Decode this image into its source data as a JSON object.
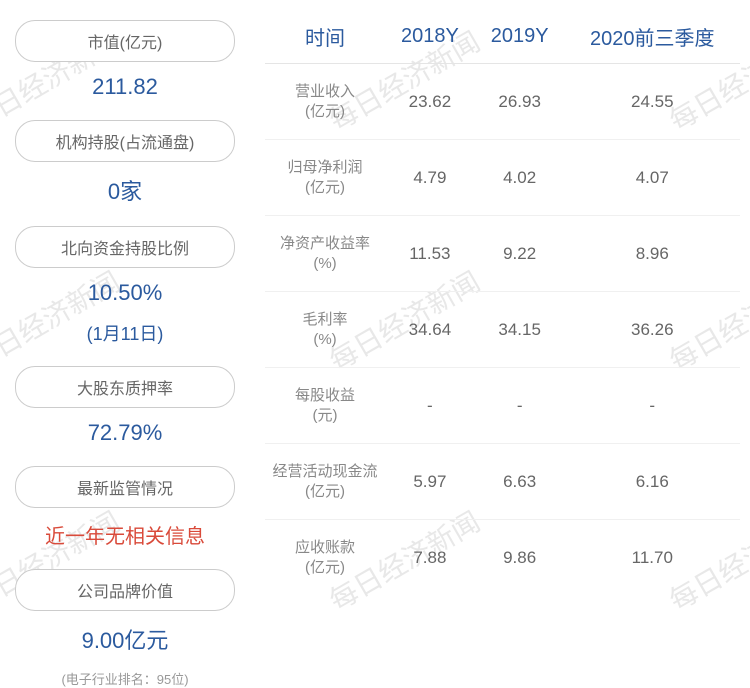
{
  "watermark_text": "每日经济新闻",
  "watermark_color": "#e8e8e8",
  "left_panel": {
    "items": [
      {
        "label": "市值(亿元)",
        "value": "211.82",
        "value_color": "#2b5a9e"
      },
      {
        "label": "机构持股(占流通盘)",
        "value": "0家",
        "value_color": "#2b5a9e"
      },
      {
        "label": "北向资金持股比例",
        "value": "10.50%",
        "subvalue": "(1月11日)",
        "value_color": "#2b5a9e"
      },
      {
        "label": "大股东质押率",
        "value": "72.79%",
        "value_color": "#2b5a9e"
      },
      {
        "label": "最新监管情况",
        "value": "近一年无相关信息",
        "value_color": "#d94a3a"
      },
      {
        "label": "公司品牌价值",
        "value": "9.00亿元",
        "subtext": "(电子行业排名：95位)",
        "value_color": "#2b5a9e"
      }
    ]
  },
  "table": {
    "header_color": "#2b5a9e",
    "cell_color": "#666666",
    "row_header_color": "#888888",
    "border_color": "#e5e5e5",
    "columns": [
      "时间",
      "2018Y",
      "2019Y",
      "2020前三季度"
    ],
    "rows": [
      {
        "header": "营业收入\n(亿元)",
        "values": [
          "23.62",
          "26.93",
          "24.55"
        ]
      },
      {
        "header": "归母净利润\n(亿元)",
        "values": [
          "4.79",
          "4.02",
          "4.07"
        ]
      },
      {
        "header": "净资产收益率\n(%)",
        "values": [
          "11.53",
          "9.22",
          "8.96"
        ]
      },
      {
        "header": "毛利率\n(%)",
        "values": [
          "34.64",
          "34.15",
          "36.26"
        ]
      },
      {
        "header": "每股收益\n(元)",
        "values": [
          "-",
          "-",
          "-"
        ]
      },
      {
        "header": "经营活动现金流\n(亿元)",
        "values": [
          "5.97",
          "6.63",
          "6.16"
        ]
      },
      {
        "header": "应收账款\n(亿元)",
        "values": [
          "7.88",
          "9.86",
          "11.70"
        ]
      }
    ]
  }
}
